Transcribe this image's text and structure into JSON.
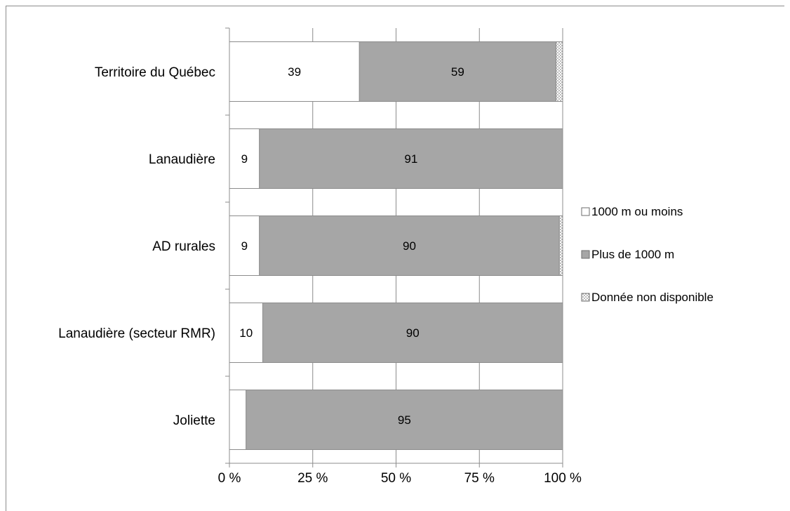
{
  "chart_data": {
    "type": "bar",
    "orientation": "horizontal",
    "stacked": "percent",
    "categories": [
      "Territoire du Québec",
      "Lanaudière",
      "AD rurales",
      "Lanaudière (secteur RMR)",
      "Joliette"
    ],
    "series": [
      {
        "name": "1000 m ou moins",
        "values": [
          39,
          9,
          9,
          10,
          5
        ],
        "labels": [
          "39",
          "9",
          "9",
          "10",
          ""
        ],
        "color": "#ffffff"
      },
      {
        "name": "Plus de 1000 m",
        "values": [
          59,
          91,
          90,
          90,
          95
        ],
        "labels": [
          "59",
          "91",
          "90",
          "90",
          "95"
        ],
        "color": "#a6a6a6"
      },
      {
        "name": "Donnée non disponible",
        "values": [
          2,
          0,
          1,
          0,
          0
        ],
        "labels": [
          "",
          "",
          "",
          "",
          ""
        ],
        "color": "#d9d9d9"
      }
    ],
    "xlim": [
      0,
      100
    ],
    "xticks": [
      "0 %",
      "25 %",
      "50 %",
      "75 %",
      "100 %"
    ],
    "grid": true,
    "legend_position": "right"
  }
}
